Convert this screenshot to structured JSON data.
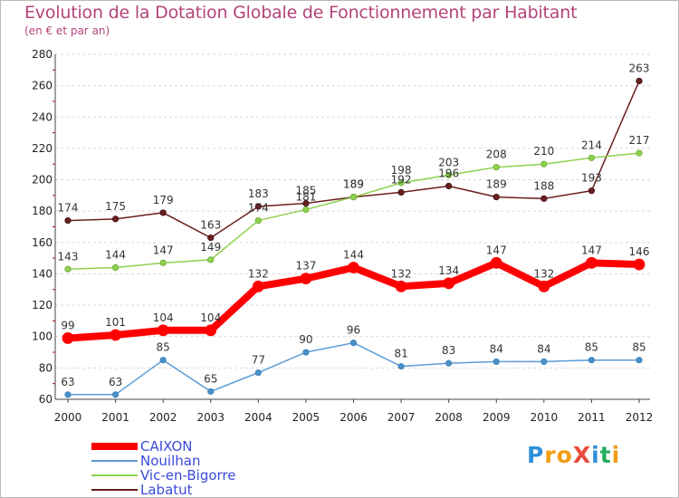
{
  "title": "Evolution de la Dotation Globale de Fonctionnement par Habitant",
  "subtitle": "(en € et par an)",
  "logo": {
    "text": "ProXiti",
    "letters": [
      {
        "ch": "P",
        "color": "#2e8fd8"
      },
      {
        "ch": "r",
        "color": "#f39c12"
      },
      {
        "ch": "o",
        "color": "#f39c12"
      },
      {
        "ch": "X",
        "color": "#e74c3c"
      },
      {
        "ch": "i",
        "color": "#2e8fd8"
      },
      {
        "ch": "t",
        "color": "#27ae60"
      },
      {
        "ch": "i",
        "color": "#f39c12"
      }
    ]
  },
  "chart_data": {
    "type": "line",
    "x": [
      2000,
      2001,
      2002,
      2003,
      2004,
      2005,
      2006,
      2007,
      2008,
      2009,
      2010,
      2011,
      2012
    ],
    "ylim": [
      60,
      280
    ],
    "yticks": [
      60,
      80,
      100,
      120,
      140,
      160,
      180,
      200,
      220,
      240,
      260,
      280
    ],
    "grid": "horizontal",
    "legend": "bottom",
    "series": [
      {
        "name": "Labatut",
        "color": "#6b1f1f",
        "values": [
          174,
          175,
          179,
          163,
          183,
          185,
          189,
          192,
          196,
          189,
          188,
          193,
          263
        ]
      },
      {
        "name": "Vic-en-Bigorre",
        "color": "#8fd14f",
        "values": [
          143,
          144,
          147,
          149,
          174,
          181,
          189,
          198,
          203,
          208,
          210,
          214,
          217
        ]
      },
      {
        "name": "Nouilhan",
        "color": "#5b9bd5",
        "values": [
          63,
          63,
          85,
          65,
          77,
          90,
          96,
          81,
          83,
          84,
          84,
          85,
          85
        ]
      },
      {
        "name": "CAIXON",
        "color": "#ff0000",
        "values": [
          99,
          101,
          104,
          104,
          132,
          137,
          144,
          132,
          134,
          147,
          132,
          147,
          146
        ]
      }
    ],
    "legend_order": [
      "CAIXON",
      "Nouilhan",
      "Vic-en-Bigorre",
      "Labatut"
    ]
  }
}
